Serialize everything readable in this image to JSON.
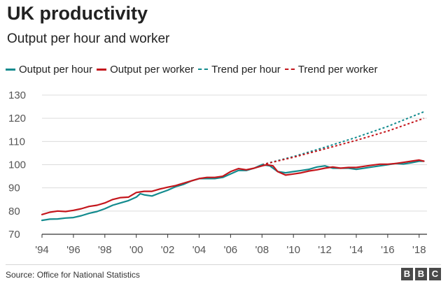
{
  "title": "UK productivity",
  "subtitle": "Output per hour and worker",
  "legend": [
    {
      "label": "Output per hour",
      "color": "#138b8e",
      "style": "solid"
    },
    {
      "label": "Output per worker",
      "color": "#c4161c",
      "style": "solid"
    },
    {
      "label": "Trend per hour",
      "color": "#138b8e",
      "style": "dotted"
    },
    {
      "label": "Trend per worker",
      "color": "#c4161c",
      "style": "dotted"
    }
  ],
  "source": "Source: Office for National Statistics",
  "brand": [
    "B",
    "B",
    "C"
  ],
  "chart_data": {
    "type": "line",
    "title": "UK productivity",
    "subtitle": "Output per hour and worker",
    "xlim": [
      1994,
      2018.5
    ],
    "ylim": [
      70,
      130
    ],
    "x_ticks": [
      1994,
      1996,
      1998,
      2000,
      2002,
      2004,
      2006,
      2008,
      2010,
      2012,
      2014,
      2016,
      2018
    ],
    "x_tick_labels": [
      "'94",
      "'96",
      "'98",
      "'00",
      "'02",
      "'04",
      "'06",
      "'08",
      "'10",
      "'12",
      "'14",
      "'16",
      "'18"
    ],
    "y_ticks": [
      70,
      80,
      90,
      100,
      110,
      120,
      130
    ],
    "y_tick_labels": [
      "70",
      "80",
      "90",
      "100",
      "110",
      "120",
      "130"
    ],
    "grid": "horizontal",
    "legend_position": "top",
    "series": [
      {
        "name": "Output per hour",
        "color": "#138b8e",
        "style": "solid",
        "x": [
          1994,
          1994.5,
          1995,
          1995.5,
          1996,
          1996.5,
          1997,
          1997.5,
          1998,
          1998.5,
          1999,
          1999.5,
          2000,
          2000.25,
          2000.5,
          2001,
          2001.5,
          2002,
          2002.5,
          2003,
          2003.5,
          2004,
          2004.5,
          2005,
          2005.5,
          2006,
          2006.5,
          2007,
          2007.5,
          2008,
          2008.5,
          2009,
          2009.5,
          2010,
          2010.5,
          2011,
          2011.5,
          2012,
          2012.5,
          2013,
          2013.5,
          2014,
          2014.5,
          2015,
          2015.5,
          2016,
          2016.5,
          2017,
          2017.5,
          2018,
          2018.3
        ],
        "values": [
          76,
          76.5,
          76.6,
          77,
          77.2,
          78,
          79,
          79.8,
          81,
          82.5,
          83.5,
          84.5,
          86,
          87.5,
          87,
          86.5,
          87.8,
          89,
          90.5,
          91.5,
          93,
          94,
          94,
          94,
          94.5,
          96,
          97.5,
          97.5,
          98.5,
          100,
          99.5,
          97,
          96.5,
          97,
          97.5,
          98,
          99,
          99.5,
          98.5,
          98.5,
          98.5,
          98,
          98.5,
          99,
          99.5,
          100,
          100.5,
          100.3,
          100.8,
          101.5,
          101.5
        ]
      },
      {
        "name": "Output per worker",
        "color": "#c4161c",
        "style": "solid",
        "x": [
          1994,
          1994.5,
          1995,
          1995.5,
          1996,
          1996.5,
          1997,
          1997.5,
          1998,
          1998.5,
          1999,
          1999.5,
          2000,
          2000.5,
          2001,
          2001.5,
          2002,
          2002.5,
          2003,
          2003.5,
          2004,
          2004.5,
          2005,
          2005.5,
          2006,
          2006.5,
          2007,
          2007.5,
          2008,
          2008.3,
          2008.7,
          2009,
          2009.5,
          2010,
          2010.5,
          2011,
          2011.5,
          2012,
          2012.5,
          2013,
          2013.5,
          2014,
          2014.5,
          2015,
          2015.5,
          2016,
          2016.5,
          2017,
          2017.5,
          2018,
          2018.3
        ],
        "values": [
          78.5,
          79.5,
          80,
          79.8,
          80.3,
          81,
          82,
          82.5,
          83.5,
          85,
          85.8,
          86,
          88,
          88.5,
          88.5,
          89.5,
          90.3,
          91,
          92,
          93,
          94,
          94.5,
          94.5,
          95,
          97,
          98.3,
          97.8,
          98.5,
          99.5,
          100,
          99.5,
          97,
          95.5,
          96,
          96.5,
          97.3,
          97.8,
          98.5,
          99,
          98.5,
          98.8,
          98.8,
          99.3,
          99.8,
          100.2,
          100.2,
          100.5,
          101,
          101.5,
          102,
          101.5
        ]
      },
      {
        "name": "Trend per hour",
        "color": "#138b8e",
        "style": "dotted",
        "x": [
          2008,
          2010,
          2012,
          2014,
          2016,
          2018.3
        ],
        "values": [
          100,
          103.5,
          107.5,
          111.8,
          116.5,
          122.8
        ]
      },
      {
        "name": "Trend per worker",
        "color": "#c4161c",
        "style": "dotted",
        "x": [
          2008,
          2010,
          2012,
          2014,
          2016,
          2018.3
        ],
        "values": [
          100,
          103.2,
          106.8,
          110.5,
          114.5,
          120
        ]
      }
    ]
  }
}
